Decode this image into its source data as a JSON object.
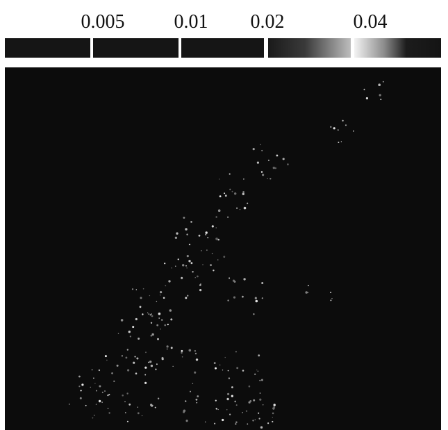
{
  "colorbar": {
    "ticks": [
      0.005,
      0.01,
      0.02,
      0.04
    ]
  }
}
